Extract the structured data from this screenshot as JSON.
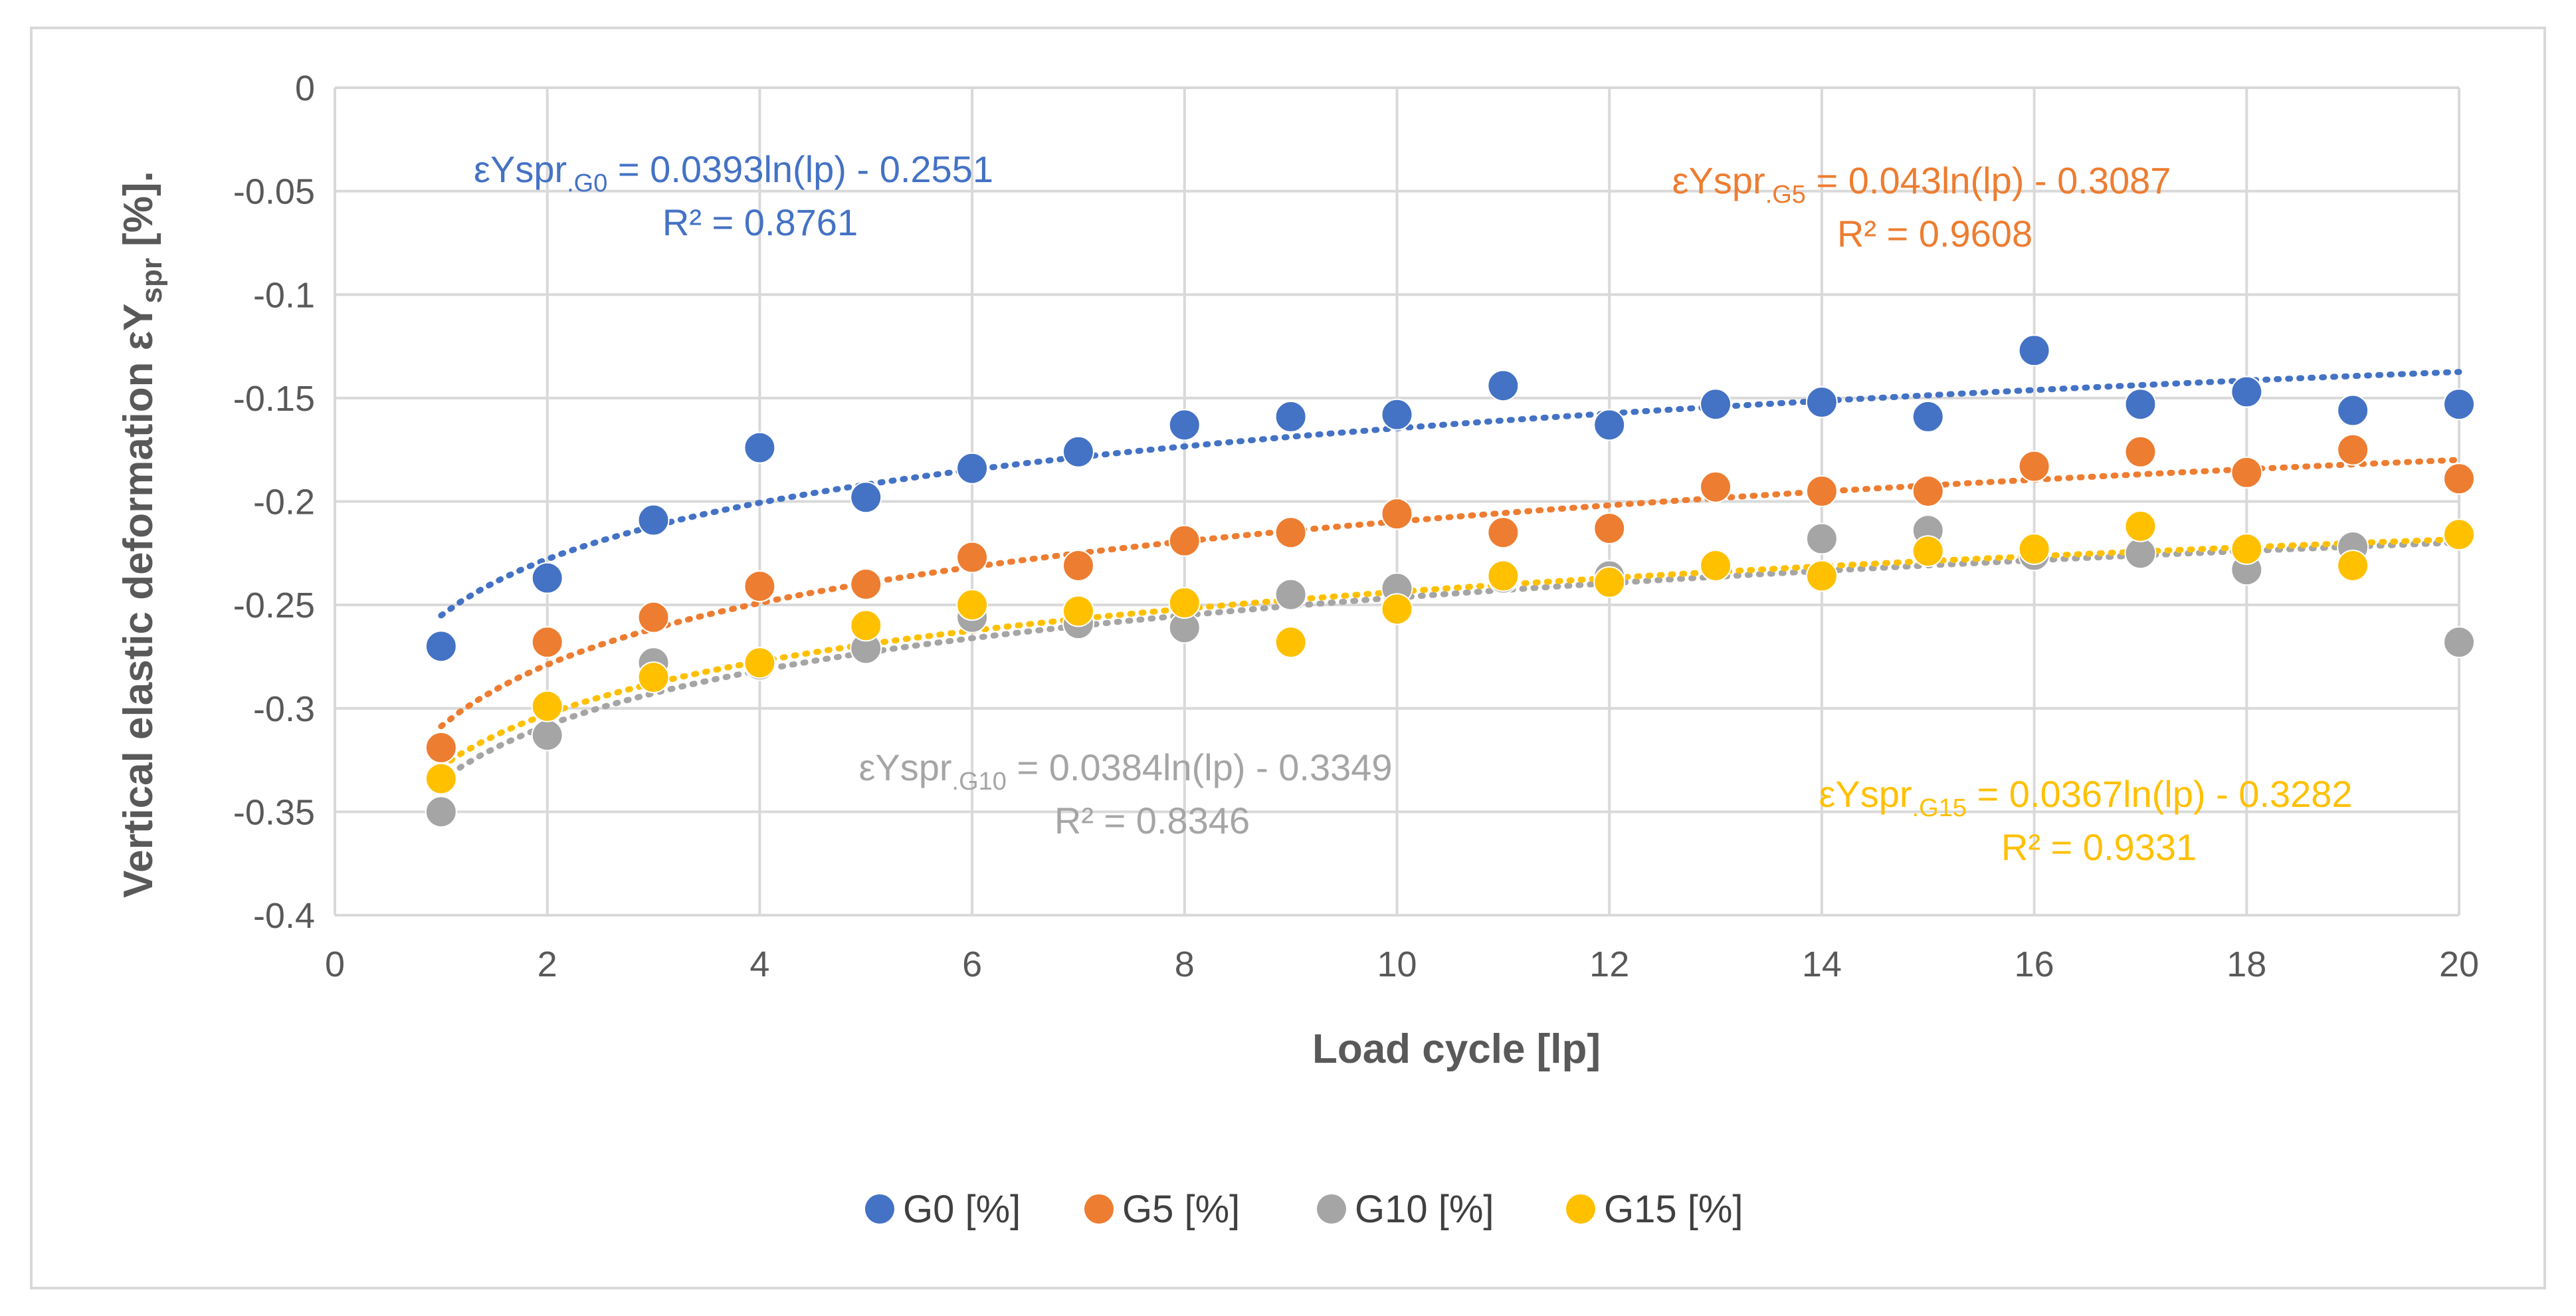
{
  "chart_data": {
    "type": "scatter",
    "xlabel": "Load cycle [lp]",
    "ylabel": "Vertical elastic deformation εY",
    "ylabel_sub": "spr",
    "ylabel_suffix": " [%].",
    "xlim": [
      0,
      20
    ],
    "ylim": [
      -0.4,
      0
    ],
    "x_ticks": [
      "0",
      "2",
      "4",
      "6",
      "8",
      "10",
      "12",
      "14",
      "16",
      "18",
      "20"
    ],
    "y_ticks": [
      "0",
      "-0.05",
      "-0.1",
      "-0.15",
      "-0.2",
      "-0.25",
      "-0.3",
      "-0.35",
      "-0.4"
    ],
    "grid": true,
    "legend_position": "bottom",
    "x": [
      1,
      2,
      3,
      4,
      5,
      6,
      7,
      8,
      9,
      10,
      11,
      12,
      13,
      14,
      15,
      16,
      17,
      18,
      19,
      20
    ],
    "series": [
      {
        "name": "G0 [%]",
        "color": "#4472c4",
        "values": [
          -0.27,
          -0.237,
          -0.209,
          -0.174,
          -0.198,
          -0.184,
          -0.176,
          -0.163,
          -0.159,
          -0.158,
          -0.144,
          -0.163,
          -0.153,
          -0.152,
          -0.159,
          -0.127,
          -0.153,
          -0.147,
          -0.156,
          -0.153
        ],
        "trend": {
          "a": 0.0393,
          "b": -0.2551,
          "equation_prefix": "εYspr",
          "equation_sub": ".G0",
          "equation_rest": "= 0.0393ln(lp) - 0.2551",
          "r2": "R² = 0.8761"
        }
      },
      {
        "name": "G5 [%]",
        "color": "#ed7d31",
        "values": [
          -0.319,
          -0.268,
          -0.256,
          -0.241,
          -0.24,
          -0.227,
          -0.231,
          -0.219,
          -0.215,
          -0.206,
          -0.215,
          -0.213,
          -0.193,
          -0.195,
          -0.195,
          -0.183,
          -0.176,
          -0.186,
          -0.175,
          -0.189
        ],
        "trend": {
          "a": 0.043,
          "b": -0.3087,
          "equation_prefix": "εYspr",
          "equation_sub": ".G5",
          "equation_rest": "= 0.043ln(lp) - 0.3087",
          "r2": "R² = 0.9608"
        }
      },
      {
        "name": "G10 [%]",
        "color": "#a5a5a5",
        "values": [
          -0.35,
          -0.313,
          -0.278,
          -0.279,
          -0.271,
          -0.256,
          -0.259,
          -0.261,
          -0.245,
          -0.242,
          -0.237,
          -0.236,
          -0.231,
          -0.218,
          -0.214,
          -0.226,
          -0.225,
          -0.233,
          -0.222,
          -0.268
        ],
        "trend": {
          "a": 0.0384,
          "b": -0.3349,
          "equation_prefix": "εYspr",
          "equation_sub": ".G10",
          "equation_rest": "= 0.0384ln(lp) - 0.3349",
          "r2": "R² = 0.8346"
        }
      },
      {
        "name": "G15 [%]",
        "color": "#ffc000",
        "values": [
          -0.334,
          -0.299,
          -0.285,
          -0.278,
          -0.26,
          -0.25,
          -0.253,
          -0.249,
          -0.268,
          -0.252,
          -0.236,
          -0.239,
          -0.231,
          -0.236,
          -0.224,
          -0.223,
          -0.212,
          -0.223,
          -0.231,
          -0.216
        ],
        "trend": {
          "a": 0.0367,
          "b": -0.3282,
          "equation_prefix": "εYspr",
          "equation_sub": ".G15",
          "equation_rest": "= 0.0367ln(lp) - 0.3282",
          "r2": "R² = 0.9331"
        }
      }
    ]
  }
}
